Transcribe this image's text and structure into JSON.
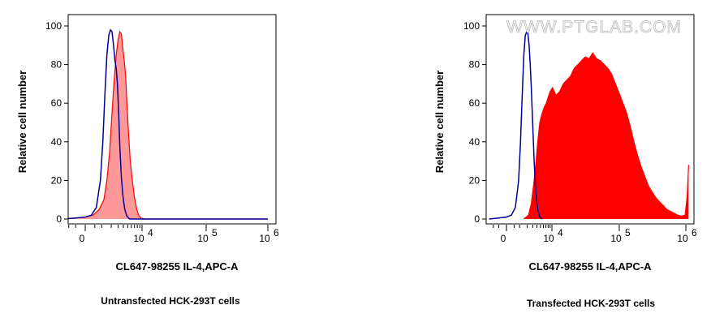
{
  "chart_data": [
    {
      "type": "area",
      "caption": "Untransfected HCK-293T cells",
      "xlabel": "CL647-98255 IL-4,APC-A",
      "ylabel": "Relative cell number",
      "ylim": [
        0,
        100
      ],
      "yticks": [
        {
          "value": 0,
          "label": "0"
        },
        {
          "value": 20,
          "label": "20"
        },
        {
          "value": 40,
          "label": "40"
        },
        {
          "value": 60,
          "label": "60"
        },
        {
          "value": 80,
          "label": "80"
        },
        {
          "value": 100,
          "label": "100"
        }
      ],
      "xticks": [
        {
          "value": 0,
          "label": "0"
        },
        {
          "value": 10000,
          "label": "10",
          "exponent": "4"
        },
        {
          "value": 100000,
          "label": "10",
          "exponent": "5"
        },
        {
          "value": 1000000,
          "label": "10",
          "exponent": "6"
        }
      ],
      "series": [
        {
          "color": "#ff0000",
          "fill": "#ff9999",
          "filled": true,
          "points": [
            [
              -1500,
              0
            ],
            [
              -500,
              0.5
            ],
            [
              0,
              1
            ],
            [
              400,
              2
            ],
            [
              800,
              5
            ],
            [
              1200,
              10
            ],
            [
              1500,
              20
            ],
            [
              1800,
              35
            ],
            [
              2100,
              55
            ],
            [
              2400,
              72
            ],
            [
              2700,
              85
            ],
            [
              3000,
              93
            ],
            [
              3300,
              97
            ],
            [
              3600,
              96
            ],
            [
              3900,
              88
            ],
            [
              4200,
              82
            ],
            [
              4500,
              74
            ],
            [
              4800,
              60
            ],
            [
              5200,
              45
            ],
            [
              5700,
              30
            ],
            [
              6300,
              20
            ],
            [
              7000,
              11
            ],
            [
              7800,
              5
            ],
            [
              8500,
              2
            ],
            [
              9500,
              0.5
            ],
            [
              11000,
              0
            ],
            [
              100000,
              0
            ],
            [
              1000000,
              0
            ]
          ]
        },
        {
          "color": "#000099",
          "filled": false,
          "points": [
            [
              -1500,
              0
            ],
            [
              -500,
              0.5
            ],
            [
              0,
              1
            ],
            [
              300,
              2
            ],
            [
              600,
              6
            ],
            [
              900,
              20
            ],
            [
              1100,
              40
            ],
            [
              1300,
              65
            ],
            [
              1500,
              85
            ],
            [
              1700,
              95
            ],
            [
              1900,
              98
            ],
            [
              2100,
              97
            ],
            [
              2300,
              90
            ],
            [
              2500,
              82
            ],
            [
              2700,
              78
            ],
            [
              2900,
              70
            ],
            [
              3100,
              55
            ],
            [
              3300,
              38
            ],
            [
              3600,
              22
            ],
            [
              3900,
              12
            ],
            [
              4300,
              5
            ],
            [
              4800,
              1.5
            ],
            [
              5500,
              0
            ],
            [
              1000000,
              0
            ]
          ]
        }
      ]
    },
    {
      "type": "area",
      "caption": "Transfected HCK-293T cells",
      "xlabel": "CL647-98255 IL-4,APC-A",
      "ylabel": "Relative cell number",
      "watermark": "WWW.PTGLAB.COM",
      "ylim": [
        0,
        100
      ],
      "yticks": [
        {
          "value": 0,
          "label": "0"
        },
        {
          "value": 20,
          "label": "20"
        },
        {
          "value": 40,
          "label": "40"
        },
        {
          "value": 60,
          "label": "60"
        },
        {
          "value": 80,
          "label": "80"
        },
        {
          "value": 100,
          "label": "100"
        }
      ],
      "xticks": [
        {
          "value": 0,
          "label": "0"
        },
        {
          "value": 10000,
          "label": "10",
          "exponent": "4"
        },
        {
          "value": 100000,
          "label": "10",
          "exponent": "5"
        },
        {
          "value": 1000000,
          "label": "10",
          "exponent": "6"
        }
      ],
      "series": [
        {
          "color": "#ff0000",
          "fill": "#ff0000",
          "filled": true,
          "points": [
            [
              1500,
              0
            ],
            [
              2200,
              2
            ],
            [
              2700,
              8
            ],
            [
              3200,
              18
            ],
            [
              3700,
              28
            ],
            [
              4200,
              40
            ],
            [
              4800,
              50
            ],
            [
              5600,
              55
            ],
            [
              6400,
              58
            ],
            [
              7200,
              60
            ],
            [
              8000,
              63
            ],
            [
              9000,
              66
            ],
            [
              10200,
              68
            ],
            [
              11600,
              64
            ],
            [
              13200,
              66
            ],
            [
              15000,
              70
            ],
            [
              17000,
              72
            ],
            [
              19300,
              74
            ],
            [
              21900,
              78
            ],
            [
              24900,
              80
            ],
            [
              28200,
              82
            ],
            [
              32000,
              84
            ],
            [
              36300,
              83
            ],
            [
              41200,
              86
            ],
            [
              46800,
              83
            ],
            [
              53100,
              82
            ],
            [
              60300,
              80
            ],
            [
              68400,
              78
            ],
            [
              77600,
              75
            ],
            [
              88100,
              70
            ],
            [
              100000,
              65
            ],
            [
              113500,
              60
            ],
            [
              128800,
              55
            ],
            [
              146200,
              48
            ],
            [
              165900,
              40
            ],
            [
              188300,
              33
            ],
            [
              213700,
              27
            ],
            [
              242600,
              22
            ],
            [
              275300,
              17
            ],
            [
              312500,
              14
            ],
            [
              354600,
              11
            ],
            [
              402500,
              9
            ],
            [
              456800,
              7
            ],
            [
              518300,
              5
            ],
            [
              588300,
              4
            ],
            [
              667700,
              3
            ],
            [
              757600,
              2
            ],
            [
              859800,
              1.5
            ],
            [
              975800,
              2
            ],
            [
              1050000,
              12
            ],
            [
              1100000,
              28
            ]
          ]
        },
        {
          "color": "#000099",
          "filled": false,
          "points": [
            [
              -1500,
              0
            ],
            [
              -500,
              0.5
            ],
            [
              0,
              1
            ],
            [
              300,
              2
            ],
            [
              600,
              6
            ],
            [
              900,
              20
            ],
            [
              1100,
              40
            ],
            [
              1300,
              65
            ],
            [
              1500,
              85
            ],
            [
              1700,
              95
            ],
            [
              1900,
              97
            ],
            [
              2100,
              96
            ],
            [
              2300,
              90
            ],
            [
              2500,
              80
            ],
            [
              2700,
              68
            ],
            [
              2900,
              55
            ],
            [
              3100,
              42
            ],
            [
              3300,
              30
            ],
            [
              3600,
              18
            ],
            [
              3900,
              10
            ],
            [
              4300,
              4
            ],
            [
              4800,
              1
            ],
            [
              5500,
              0
            ]
          ]
        }
      ]
    }
  ]
}
